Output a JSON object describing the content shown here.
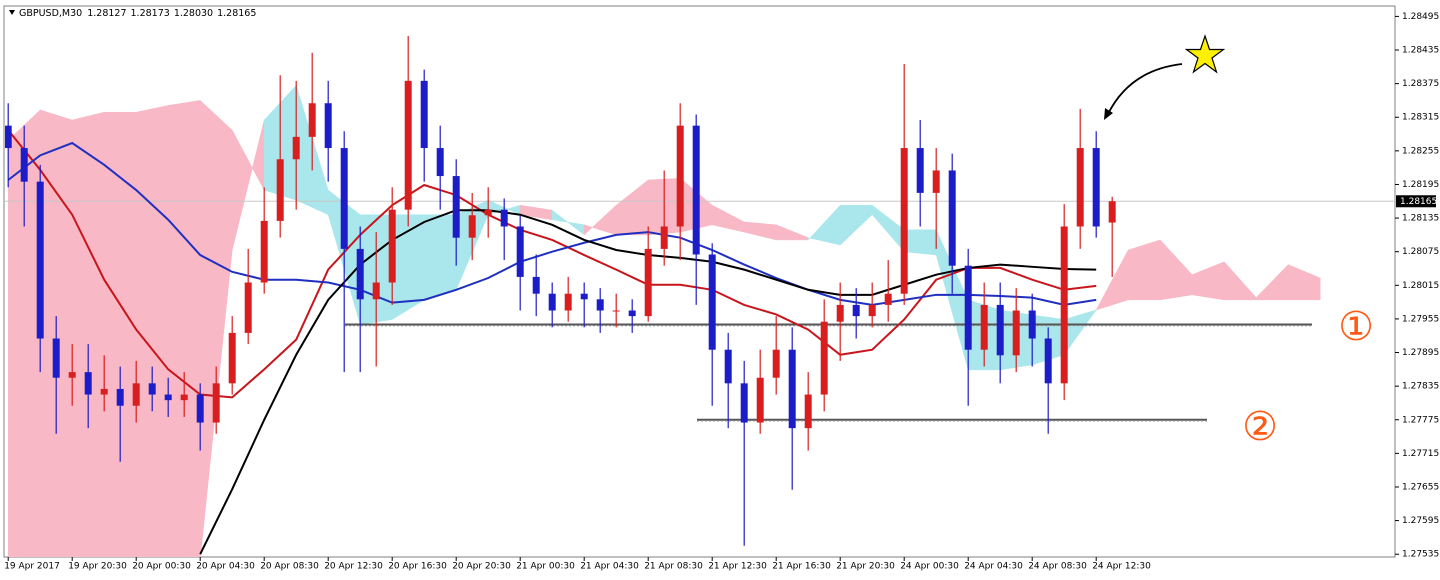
{
  "chart_data": {
    "type": "candlestick",
    "symbol": "GBPUSD,M30",
    "last_bar_labels": [
      "1.28127",
      "1.28173",
      "1.28030",
      "1.28165"
    ],
    "up_color": "#d81e1e",
    "down_color": "#1c1cc8",
    "open": [
      1.283,
      1.2826,
      1.282,
      1.2792,
      1.2785,
      1.2786,
      1.2782,
      1.2783,
      1.278,
      1.2784,
      1.2782,
      1.2781,
      1.2782,
      1.2777,
      1.2784,
      1.2793,
      1.2802,
      1.2813,
      1.2824,
      1.2828,
      1.2834,
      1.2826,
      1.2808,
      1.2799,
      1.2802,
      1.2815,
      1.2838,
      1.2826,
      1.2821,
      1.281,
      1.2814,
      1.2815,
      1.2812,
      1.2803,
      1.28,
      1.2797,
      1.28,
      1.2799,
      1.2797,
      1.2797,
      1.2796,
      1.2808,
      1.2812,
      1.283,
      1.2807,
      1.279,
      1.2784,
      1.2777,
      1.2785,
      1.279,
      1.2776,
      1.2782,
      1.2795,
      1.2798,
      1.2796,
      1.2798,
      1.28,
      1.2826,
      1.2818,
      1.2822,
      1.2805,
      1.279,
      1.2798,
      1.2789,
      1.2797,
      1.2792,
      1.2784,
      1.2812,
      1.2826,
      1.28127
    ],
    "high": [
      1.2834,
      1.283,
      1.2823,
      1.2796,
      1.2791,
      1.2791,
      1.2789,
      1.2787,
      1.2788,
      1.2787,
      1.2785,
      1.2786,
      1.2784,
      1.2787,
      1.2796,
      1.2808,
      1.2819,
      1.2839,
      1.2838,
      1.2843,
      1.2838,
      1.2829,
      1.2812,
      1.2811,
      1.2819,
      1.2846,
      1.284,
      1.283,
      1.2824,
      1.2818,
      1.2819,
      1.2817,
      1.2814,
      1.2807,
      1.2802,
      1.2803,
      1.2802,
      1.2801,
      1.28,
      1.2799,
      1.2812,
      1.2822,
      1.2834,
      1.2832,
      1.2809,
      1.2793,
      1.2788,
      1.279,
      1.2796,
      1.2794,
      1.2786,
      1.2799,
      1.2802,
      1.2801,
      1.2802,
      1.2806,
      1.2841,
      1.2831,
      1.2826,
      1.2825,
      1.2808,
      1.2802,
      1.2802,
      1.2801,
      1.28,
      1.2794,
      1.2816,
      1.2833,
      1.2829,
      1.28173
    ],
    "low": [
      1.2819,
      1.2812,
      1.2786,
      1.2775,
      1.278,
      1.2776,
      1.2779,
      1.277,
      1.2777,
      1.2779,
      1.2778,
      1.2778,
      1.2772,
      1.2775,
      1.2782,
      1.2791,
      1.28,
      1.281,
      1.2815,
      1.2822,
      1.282,
      1.2786,
      1.2786,
      1.2787,
      1.2798,
      1.2812,
      1.282,
      1.2815,
      1.2805,
      1.2806,
      1.281,
      1.2806,
      1.2797,
      1.2796,
      1.2794,
      1.2795,
      1.2794,
      1.2793,
      1.2794,
      1.2793,
      1.2795,
      1.2805,
      1.2806,
      1.2798,
      1.278,
      1.2776,
      1.2755,
      1.2775,
      1.2782,
      1.2765,
      1.2772,
      1.2779,
      1.2788,
      1.2792,
      1.2794,
      1.2795,
      1.2798,
      1.2812,
      1.2808,
      1.28,
      1.278,
      1.2787,
      1.2784,
      1.2786,
      1.2787,
      1.2775,
      1.2781,
      1.2808,
      1.281,
      1.2803
    ],
    "close": [
      1.2826,
      1.282,
      1.2792,
      1.2785,
      1.2786,
      1.2782,
      1.2783,
      1.278,
      1.2784,
      1.2782,
      1.2781,
      1.2782,
      1.2777,
      1.2784,
      1.2793,
      1.2802,
      1.2813,
      1.2824,
      1.2828,
      1.2834,
      1.2826,
      1.2808,
      1.2799,
      1.2802,
      1.2815,
      1.2838,
      1.2826,
      1.2821,
      1.281,
      1.2814,
      1.2815,
      1.2812,
      1.2803,
      1.28,
      1.2797,
      1.28,
      1.2799,
      1.2797,
      1.2797,
      1.2796,
      1.2808,
      1.2812,
      1.283,
      1.2807,
      1.279,
      1.2784,
      1.2777,
      1.2785,
      1.279,
      1.2776,
      1.2782,
      1.2795,
      1.2798,
      1.2796,
      1.2798,
      1.28,
      1.2826,
      1.2818,
      1.2822,
      1.2805,
      1.279,
      1.2798,
      1.2789,
      1.2797,
      1.2792,
      1.2784,
      1.2812,
      1.2826,
      1.2812,
      1.28165
    ],
    "xlim": [
      -0.2,
      86.675
    ],
    "xticks": [
      {
        "value": 0,
        "label": "19 Apr 2017"
      },
      {
        "value": 4,
        "label": "19 Apr 20:30"
      },
      {
        "value": 8,
        "label": "20 Apr 00:30"
      },
      {
        "value": 12,
        "label": "20 Apr 04:30"
      },
      {
        "value": 16,
        "label": "20 Apr 08:30"
      },
      {
        "value": 20,
        "label": "20 Apr 12:30"
      },
      {
        "value": 24,
        "label": "20 Apr 16:30"
      },
      {
        "value": 28,
        "label": "20 Apr 20:30"
      },
      {
        "value": 32,
        "label": "21 Apr 00:30"
      },
      {
        "value": 36,
        "label": "21 Apr 04:30"
      },
      {
        "value": 40,
        "label": "21 Apr 08:30"
      },
      {
        "value": 44,
        "label": "21 Apr 12:30"
      },
      {
        "value": 48,
        "label": "21 Apr 16:30"
      },
      {
        "value": 52,
        "label": "21 Apr 20:30"
      },
      {
        "value": 56,
        "label": "24 Apr 00:30"
      },
      {
        "value": 60,
        "label": "24 Apr 04:30"
      },
      {
        "value": 64,
        "label": "24 Apr 08:30"
      },
      {
        "value": 68,
        "label": "24 Apr 12:30"
      }
    ],
    "ylim": [
      1.2753,
      1.2851
    ],
    "yticks": [
      1.28495,
      1.28435,
      1.28375,
      1.28315,
      1.28255,
      1.28195,
      1.28135,
      1.28075,
      1.28015,
      1.27955,
      1.27895,
      1.27835,
      1.27775,
      1.27715,
      1.27655,
      1.27595,
      1.27535
    ],
    "overlays": {
      "x": [
        0,
        2,
        4,
        6,
        8,
        10,
        12,
        14,
        16,
        18,
        20,
        22,
        24,
        26,
        28,
        30,
        32,
        34,
        36,
        38,
        40,
        42,
        44,
        46,
        48,
        50,
        52,
        54,
        56,
        58,
        60,
        62,
        64,
        66,
        68
      ],
      "lines": [
        {
          "color": "#c8151b",
          "values": [
            1.28292,
            1.28221,
            1.28141,
            1.28025,
            1.27936,
            1.27865,
            1.2782,
            1.27815,
            1.27865,
            1.27918,
            1.28043,
            1.28105,
            1.28158,
            1.28194,
            1.28176,
            1.28141,
            1.28114,
            1.28096,
            1.28069,
            1.28043,
            1.28016,
            1.28016,
            1.28007,
            1.2798,
            1.27963,
            1.27936,
            1.27891,
            1.279,
            1.27954,
            1.28025,
            1.28046,
            1.28046,
            1.28025,
            1.28007,
            1.28014
          ]
        },
        {
          "color": "#1f2fc0",
          "values": [
            1.28203,
            1.28247,
            1.28269,
            1.2823,
            1.28185,
            1.28132,
            1.28069,
            1.28039,
            1.28025,
            1.28025,
            1.2802,
            1.28007,
            1.27984,
            1.27989,
            1.28007,
            1.28028,
            1.28057,
            1.28075,
            1.28091,
            1.28105,
            1.2811,
            1.281,
            1.28078,
            1.28052,
            1.28028,
            1.28007,
            1.27989,
            1.2798,
            1.27989,
            1.27998,
            1.27998,
            1.27996,
            1.27993,
            1.2798,
            1.27989
          ]
        },
        {
          "color": "#000000",
          "values": [
            null,
            null,
            null,
            null,
            null,
            null,
            1.27535,
            1.27651,
            1.27775,
            1.27891,
            1.27989,
            1.28052,
            1.28096,
            1.28128,
            1.28149,
            1.28149,
            1.28141,
            1.28123,
            1.28096,
            1.28078,
            1.28069,
            1.28064,
            1.28057,
            1.28043,
            1.28025,
            1.28007,
            1.27998,
            1.27998,
            1.28016,
            1.28034,
            1.28046,
            1.28052,
            1.28048,
            1.28044,
            1.28043
          ]
        }
      ]
    },
    "cloud": {
      "up_color": "#a9e7ec",
      "down_color": "#f8b8c5",
      "x": [
        0,
        2,
        4,
        6,
        8,
        10,
        12,
        14,
        16,
        18,
        20,
        22,
        24,
        26,
        28,
        30,
        32,
        34,
        36,
        38,
        40,
        42,
        44,
        46,
        48,
        50,
        52,
        54,
        56,
        58,
        60,
        62,
        64,
        66,
        68,
        70,
        72,
        74,
        76,
        78,
        80,
        82
      ],
      "span_a": [
        1.27526,
        1.27526,
        1.27526,
        1.27526,
        1.27526,
        1.27526,
        1.27526,
        1.28078,
        1.2831,
        1.28372,
        1.28185,
        1.28141,
        1.28141,
        1.28141,
        1.28141,
        1.28167,
        1.28141,
        1.28132,
        1.28123,
        1.28105,
        1.28105,
        1.2811,
        1.28123,
        1.2811,
        1.28096,
        1.28096,
        1.28158,
        1.28158,
        1.28114,
        1.28114,
        1.27989,
        1.27971,
        1.27962,
        1.27954,
        1.27971,
        1.27989,
        1.27989,
        1.27998,
        1.27989,
        1.27989,
        1.27989,
        1.27989
      ],
      "span_b": [
        1.28274,
        1.28328,
        1.2831,
        1.28324,
        1.28324,
        1.28336,
        1.28345,
        1.28292,
        1.28185,
        1.28167,
        1.28141,
        1.27945,
        1.27954,
        1.27989,
        1.28007,
        1.28141,
        1.28158,
        1.28149,
        1.28105,
        1.28158,
        1.28203,
        1.28206,
        1.28158,
        1.28128,
        1.28123,
        1.281,
        1.28087,
        1.28141,
        1.28075,
        1.28069,
        1.27864,
        1.27864,
        1.27873,
        1.27891,
        1.27971,
        1.28078,
        1.28096,
        1.28034,
        1.28057,
        1.27993,
        1.28052,
        1.28028
      ]
    },
    "levels": [
      {
        "value": 1.27945,
        "color": "#555555"
      },
      {
        "value": 1.27775,
        "color": "#555555"
      }
    ],
    "annotations": [
      "①",
      "②"
    ]
  }
}
